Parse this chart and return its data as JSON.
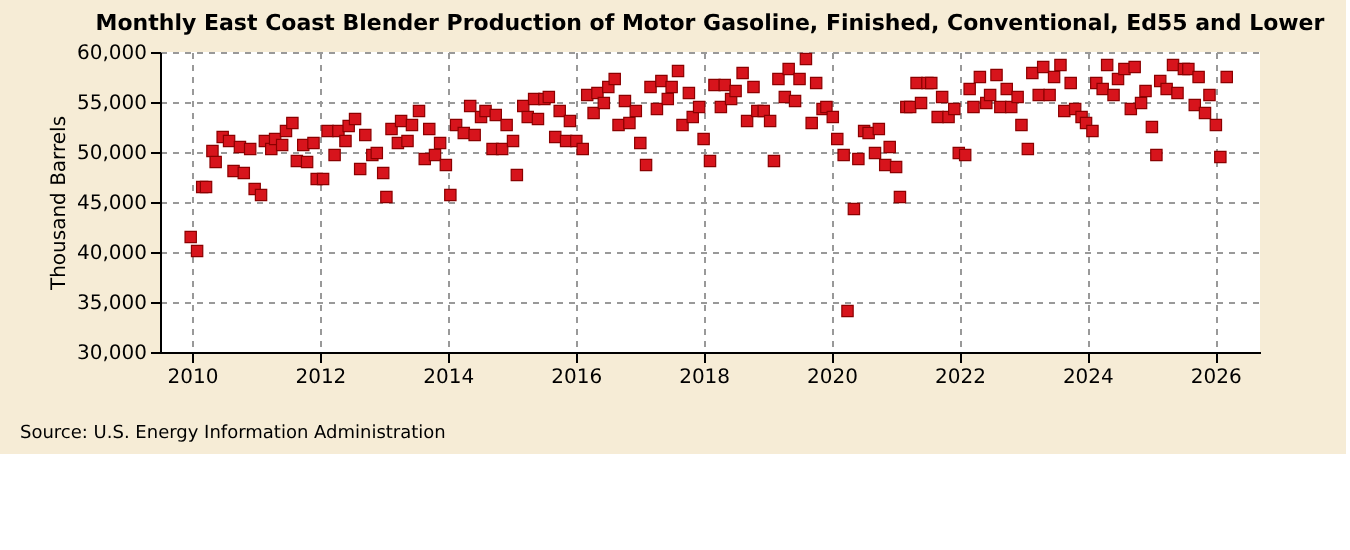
{
  "chart_data": {
    "type": "scatter",
    "title": "Monthly East Coast Blender Production of Motor Gasoline, Finished, Conventional, Ed55 and Lower",
    "ylabel": "Thousand Barrels",
    "annotations": [
      "Source: U.S. Energy Information Administration"
    ],
    "x": [
      2009.98,
      2010.08,
      2010.16,
      2010.22,
      2010.32,
      2010.37,
      2010.48,
      2010.58,
      2010.65,
      2010.75,
      2010.81,
      2010.91,
      2010.98,
      2011.08,
      2011.14,
      2011.24,
      2011.3,
      2011.41,
      2011.47,
      2011.57,
      2011.64,
      2011.74,
      2011.8,
      2011.9,
      2011.95,
      2012.05,
      2012.12,
      2012.23,
      2012.29,
      2012.4,
      2012.45,
      2012.55,
      2012.63,
      2012.71,
      2012.82,
      2012.89,
      2012.99,
      2013.04,
      2013.12,
      2013.22,
      2013.27,
      2013.37,
      2013.44,
      2013.55,
      2013.64,
      2013.71,
      2013.8,
      2013.88,
      2013.97,
      2014.04,
      2014.13,
      2014.25,
      2014.35,
      2014.42,
      2014.52,
      2014.59,
      2014.7,
      2014.75,
      2014.85,
      2014.92,
      2015.02,
      2015.08,
      2015.18,
      2015.25,
      2015.35,
      2015.41,
      2015.51,
      2015.58,
      2015.68,
      2015.75,
      2015.85,
      2015.91,
      2016.01,
      2016.11,
      2016.18,
      2016.28,
      2016.34,
      2016.44,
      2016.51,
      2016.61,
      2016.67,
      2016.77,
      2016.84,
      2016.94,
      2017.01,
      2017.1,
      2017.17,
      2017.27,
      2017.34,
      2017.44,
      2017.5,
      2017.6,
      2017.67,
      2017.77,
      2017.83,
      2017.93,
      2018.0,
      2018.1,
      2018.17,
      2018.27,
      2018.33,
      2018.43,
      2018.5,
      2018.61,
      2018.68,
      2018.78,
      2018.84,
      2018.94,
      2019.04,
      2019.1,
      2019.17,
      2019.27,
      2019.33,
      2019.43,
      2019.5,
      2019.6,
      2019.69,
      2019.76,
      2019.86,
      2019.92,
      2020.02,
      2020.09,
      2020.19,
      2020.25,
      2020.35,
      2020.42,
      2020.51,
      2020.58,
      2020.68,
      2020.74,
      2020.84,
      2020.91,
      2021.01,
      2021.07,
      2021.17,
      2021.23,
      2021.33,
      2021.4,
      2021.5,
      2021.56,
      2021.66,
      2021.73,
      2021.83,
      2021.92,
      2021.99,
      2022.09,
      2022.16,
      2022.22,
      2022.32,
      2022.42,
      2022.48,
      2022.58,
      2022.64,
      2022.74,
      2022.81,
      2022.91,
      2022.97,
      2023.07,
      2023.14,
      2023.24,
      2023.31,
      2023.41,
      2023.48,
      2023.58,
      2023.64,
      2023.74,
      2023.81,
      2023.91,
      2023.98,
      2024.08,
      2024.14,
      2024.24,
      2024.31,
      2024.41,
      2024.48,
      2024.58,
      2024.68,
      2024.74,
      2024.84,
      2024.91,
      2025.01,
      2025.08,
      2025.14,
      2025.24,
      2025.34,
      2025.41,
      2025.51,
      2025.58,
      2025.68,
      2025.74,
      2025.84,
      2025.91,
      2026.01,
      2026.08,
      2026.18
    ],
    "series": [
      {
        "color": "#d7141c",
        "values": [
          41500,
          40100,
          46500,
          46500,
          50100,
          49000,
          51500,
          51100,
          48100,
          50500,
          47900,
          50300,
          46300,
          45700,
          51100,
          50300,
          51300,
          50700,
          52100,
          52900,
          49100,
          50700,
          49000,
          50900,
          47300,
          47300,
          52100,
          49700,
          52100,
          51100,
          52600,
          53300,
          48300,
          51700,
          49700,
          49900,
          47900,
          45500,
          52300,
          50900,
          53100,
          51100,
          52700,
          54100,
          49300,
          52300,
          49700,
          50900,
          48700,
          45700,
          52700,
          51900,
          54600,
          51700,
          53500,
          54100,
          50300,
          53700,
          50300,
          52700,
          51100,
          47700,
          54600,
          53500,
          55300,
          53300,
          55300,
          55500,
          51500,
          54100,
          51100,
          53100,
          51100,
          50300,
          55700,
          53900,
          55900,
          54900,
          56500,
          57300,
          52700,
          55100,
          52900,
          54100,
          50900,
          48700,
          56500,
          54300,
          57100,
          55300,
          56500,
          58100,
          52700,
          55900,
          53500,
          54500,
          51300,
          49100,
          56700,
          54500,
          56700,
          55300,
          56100,
          57900,
          53100,
          56500,
          54100,
          54100,
          53100,
          49100,
          57300,
          55500,
          58300,
          55100,
          57300,
          59300,
          52900,
          56900,
          54300,
          54500,
          53500,
          51300,
          49700,
          34100,
          44300,
          49300,
          52100,
          51900,
          49900,
          52300,
          48700,
          50500,
          48500,
          45500,
          54500,
          54500,
          56900,
          54900,
          56900,
          56900,
          53500,
          55500,
          53500,
          54300,
          49900,
          49700,
          56300,
          54500,
          57500,
          54900,
          55700,
          57700,
          54500,
          56300,
          54500,
          55500,
          52700,
          50300,
          57900,
          55700,
          58500,
          55700,
          57500,
          58700,
          54100,
          56900,
          54300,
          53500,
          52900,
          52100,
          56900,
          56300,
          58700,
          55700,
          57300,
          58300,
          54300,
          58500,
          54900,
          56100,
          52500,
          49700,
          57100,
          56300,
          58700,
          55900,
          58300,
          58300,
          54700,
          57500,
          53900,
          55700,
          52700,
          49500,
          57500
        ]
      }
    ],
    "xlim": [
      2009.5,
      2026.7
    ],
    "xticks": [
      2010,
      2012,
      2014,
      2016,
      2018,
      2020,
      2022,
      2024,
      2026
    ],
    "ylim": [
      30000,
      60000
    ],
    "yticks": [
      {
        "value": 30000,
        "label": "30,000"
      },
      {
        "value": 35000,
        "label": "35,000"
      },
      {
        "value": 40000,
        "label": "40,000"
      },
      {
        "value": 45000,
        "label": "45,000"
      },
      {
        "value": 50000,
        "label": "50,000"
      },
      {
        "value": 55000,
        "label": "55,000"
      },
      {
        "value": 60000,
        "label": "60,000"
      }
    ],
    "grid": true,
    "marker": "square"
  }
}
